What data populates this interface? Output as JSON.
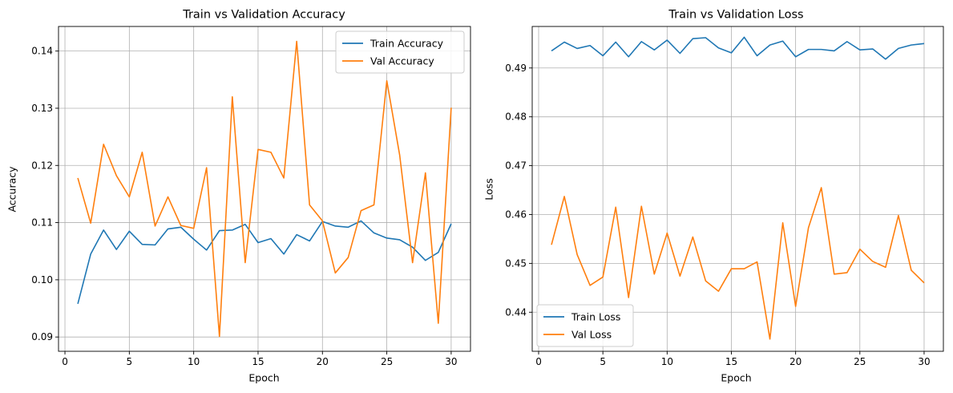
{
  "chart_data": [
    {
      "type": "line",
      "title": "Train vs Validation Accuracy",
      "xlabel": "Epoch",
      "ylabel": "Accuracy",
      "xlim": [
        -0.5,
        31.5
      ],
      "ylim": [
        0.0875,
        0.1443
      ],
      "xticks": [
        0,
        5,
        10,
        15,
        20,
        25,
        30
      ],
      "yticks": [
        0.09,
        0.1,
        0.11,
        0.12,
        0.13,
        0.14
      ],
      "ytick_decimals": 2,
      "grid": true,
      "legend_position": "top-right",
      "x": [
        1,
        2,
        3,
        4,
        5,
        6,
        7,
        8,
        9,
        10,
        11,
        12,
        13,
        14,
        15,
        16,
        17,
        18,
        19,
        20,
        21,
        22,
        23,
        24,
        25,
        26,
        27,
        28,
        29,
        30
      ],
      "series": [
        {
          "name": "Train Accuracy",
          "color": "#1f77b4",
          "values": [
            0.0958,
            0.1045,
            0.1087,
            0.1053,
            0.1085,
            0.1062,
            0.1061,
            0.1089,
            0.1092,
            0.1071,
            0.1052,
            0.1086,
            0.1087,
            0.1097,
            0.1065,
            0.1072,
            0.1045,
            0.1079,
            0.1068,
            0.1102,
            0.1094,
            0.1092,
            0.1103,
            0.1082,
            0.1073,
            0.107,
            0.1057,
            0.1034,
            0.1048,
            0.1098
          ]
        },
        {
          "name": "Val Accuracy",
          "color": "#ff7f0e",
          "values": [
            0.1178,
            0.1099,
            0.1237,
            0.1182,
            0.1145,
            0.1223,
            0.1094,
            0.1145,
            0.1095,
            0.109,
            0.1196,
            0.0901,
            0.132,
            0.103,
            0.1228,
            0.1223,
            0.1178,
            0.1417,
            0.1131,
            0.1103,
            0.1012,
            0.1039,
            0.1121,
            0.1131,
            0.1348,
            0.1218,
            0.103,
            0.1187,
            0.0924,
            0.1301
          ]
        }
      ]
    },
    {
      "type": "line",
      "title": "Train vs Validation Loss",
      "xlabel": "Epoch",
      "ylabel": "Loss",
      "xlim": [
        -0.5,
        31.5
      ],
      "ylim": [
        0.432,
        0.4985
      ],
      "xticks": [
        0,
        5,
        10,
        15,
        20,
        25,
        30
      ],
      "yticks": [
        0.44,
        0.45,
        0.46,
        0.47,
        0.48,
        0.49
      ],
      "ytick_decimals": 2,
      "grid": true,
      "legend_position": "bottom-left",
      "x": [
        1,
        2,
        3,
        4,
        5,
        6,
        7,
        8,
        9,
        10,
        11,
        12,
        13,
        14,
        15,
        16,
        17,
        18,
        19,
        20,
        21,
        22,
        23,
        24,
        25,
        26,
        27,
        28,
        29,
        30
      ],
      "series": [
        {
          "name": "Train Loss",
          "color": "#1f77b4",
          "values": [
            0.4935,
            0.4953,
            0.494,
            0.4946,
            0.4925,
            0.4953,
            0.4923,
            0.4954,
            0.4937,
            0.4957,
            0.493,
            0.496,
            0.4962,
            0.4941,
            0.4931,
            0.4963,
            0.4925,
            0.4947,
            0.4955,
            0.4923,
            0.4938,
            0.4938,
            0.4935,
            0.4954,
            0.4937,
            0.4939,
            0.4918,
            0.494,
            0.4947,
            0.495
          ]
        },
        {
          "name": "Val Loss",
          "color": "#ff7f0e",
          "values": [
            0.4538,
            0.4637,
            0.4518,
            0.4455,
            0.4472,
            0.4615,
            0.443,
            0.4617,
            0.4478,
            0.4562,
            0.4474,
            0.4554,
            0.4464,
            0.4443,
            0.4489,
            0.4489,
            0.4503,
            0.4345,
            0.4583,
            0.4412,
            0.4573,
            0.4655,
            0.4478,
            0.4481,
            0.4529,
            0.4504,
            0.4492,
            0.4598,
            0.4486,
            0.446
          ]
        }
      ]
    }
  ]
}
